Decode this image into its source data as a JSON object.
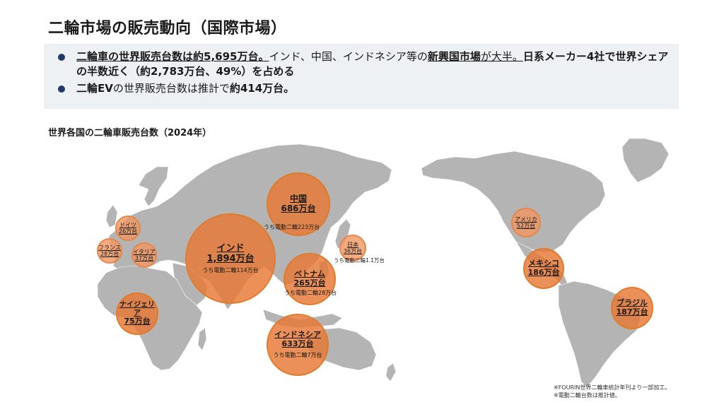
{
  "title": "二輪市場の販売動向（国際市場）",
  "summary": {
    "bullet1": {
      "p1": "二輪車の世界販売台数は約5,695万台。",
      "p2": "インド、中国、インドネシア等の",
      "p3": "新興国市場",
      "p4": "が大半。",
      "p5": "日系メーカー4社で世界シェアの半数近く（約2,783万台、49%）を占める"
    },
    "bullet2": {
      "p1": "二輪EV",
      "p2": "の世界販売台数は推計で",
      "p3": "約414万台。"
    }
  },
  "map_title": "世界各国の二輪車販売台数（2024年）",
  "countries": {
    "india": {
      "name": "インド",
      "value": "1,894万台",
      "ev": "うち電動二輪114万台"
    },
    "china": {
      "name": "中国",
      "value": "686万台",
      "ev": "うち電動二輪223万台"
    },
    "indonesia": {
      "name": "インドネシア",
      "value": "633万台",
      "ev": "うち電動二輪7万台"
    },
    "vietnam": {
      "name": "ベトナム",
      "value": "265万台",
      "ev": "うち電動二輪28万台"
    },
    "japan": {
      "name": "日本",
      "value": "36万台",
      "ev": "うち電動二輪1.1万台"
    },
    "nigeria": {
      "name": "ナイジェリア",
      "value": "75万台"
    },
    "germany": {
      "name": "ドイツ",
      "value": "26万台"
    },
    "france": {
      "name": "フランス",
      "value": "28万台"
    },
    "italy": {
      "name": "イタリア",
      "value": "37万台"
    },
    "usa": {
      "name": "アメリカ",
      "value": "52万台"
    },
    "mexico": {
      "name": "メキシコ",
      "value": "186万台"
    },
    "brazil": {
      "name": "ブラジル",
      "value": "187万台"
    }
  },
  "notes": {
    "line1": "※FOURIN世界二輪車統計年刊より一部加工。",
    "line2": "※電動二輪台数は推計値。"
  },
  "colors": {
    "bubble": "#e8783a",
    "map": "#b4b4b4",
    "bullet": "#1f3a6b",
    "panel": "#eef1f4"
  }
}
